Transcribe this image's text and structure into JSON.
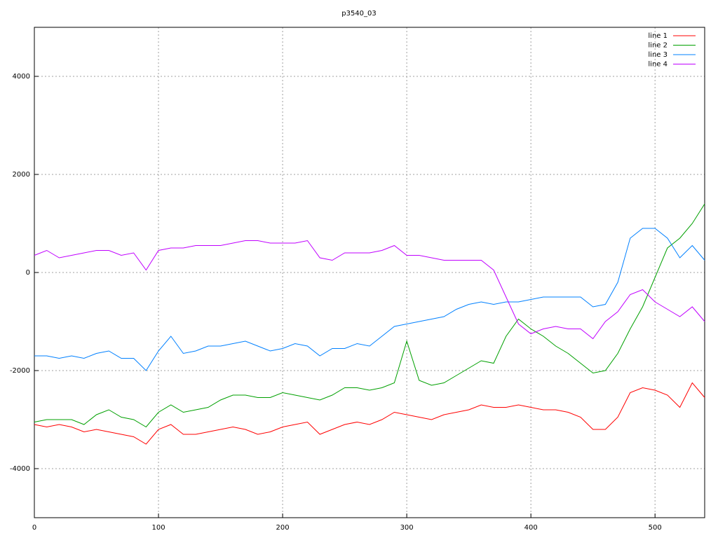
{
  "chart_data": {
    "type": "line",
    "title": "p3540_03",
    "x": [
      0,
      10,
      20,
      30,
      40,
      50,
      60,
      70,
      80,
      90,
      100,
      110,
      120,
      130,
      140,
      150,
      160,
      170,
      180,
      190,
      200,
      210,
      220,
      230,
      240,
      250,
      260,
      270,
      280,
      290,
      300,
      310,
      320,
      330,
      340,
      350,
      360,
      370,
      380,
      390,
      400,
      410,
      420,
      430,
      440,
      450,
      460,
      470,
      480,
      490,
      500,
      510,
      520,
      530,
      540
    ],
    "series": [
      {
        "name": "line 1",
        "color": "#ff0000",
        "values": [
          -3100,
          -3150,
          -3100,
          -3150,
          -3250,
          -3200,
          -3250,
          -3300,
          -3350,
          -3500,
          -3200,
          -3100,
          -3300,
          -3300,
          -3250,
          -3200,
          -3150,
          -3200,
          -3300,
          -3250,
          -3150,
          -3100,
          -3050,
          -3300,
          -3200,
          -3100,
          -3050,
          -3100,
          -3000,
          -2850,
          -2900,
          -2950,
          -3000,
          -2900,
          -2850,
          -2800,
          -2700,
          -2750,
          -2750,
          -2700,
          -2750,
          -2800,
          -2800,
          -2850,
          -2950,
          -3200,
          -3200,
          -2950,
          -2450,
          -2350,
          -2400,
          -2500,
          -2750,
          -2250,
          -2550
        ]
      },
      {
        "name": "line 2",
        "color": "#00a000",
        "values": [
          -3050,
          -3000,
          -3000,
          -3000,
          -3100,
          -2900,
          -2800,
          -2950,
          -3000,
          -3150,
          -2850,
          -2700,
          -2850,
          -2800,
          -2750,
          -2600,
          -2500,
          -2500,
          -2550,
          -2550,
          -2450,
          -2500,
          -2550,
          -2600,
          -2500,
          -2350,
          -2350,
          -2400,
          -2350,
          -2250,
          -1400,
          -2200,
          -2300,
          -2250,
          -2100,
          -1950,
          -1800,
          -1850,
          -1300,
          -950,
          -1150,
          -1300,
          -1500,
          -1650,
          -1850,
          -2050,
          -2000,
          -1650,
          -1150,
          -700,
          -100,
          500,
          700,
          1000,
          1400
        ]
      },
      {
        "name": "line 3",
        "color": "#0080ff",
        "values": [
          -1700,
          -1700,
          -1750,
          -1700,
          -1750,
          -1650,
          -1600,
          -1750,
          -1750,
          -2000,
          -1600,
          -1300,
          -1650,
          -1600,
          -1500,
          -1500,
          -1450,
          -1400,
          -1500,
          -1600,
          -1550,
          -1450,
          -1500,
          -1700,
          -1550,
          -1550,
          -1450,
          -1500,
          -1300,
          -1100,
          -1050,
          -1000,
          -950,
          -900,
          -750,
          -650,
          -600,
          -650,
          -600,
          -600,
          -550,
          -500,
          -500,
          -500,
          -500,
          -700,
          -650,
          -200,
          700,
          900,
          900,
          700,
          300,
          550,
          250
        ]
      },
      {
        "name": "line 4",
        "color": "#c000ff",
        "values": [
          350,
          450,
          300,
          350,
          400,
          450,
          450,
          350,
          400,
          50,
          450,
          500,
          500,
          550,
          550,
          550,
          600,
          650,
          650,
          600,
          600,
          600,
          650,
          300,
          250,
          400,
          400,
          400,
          450,
          550,
          350,
          350,
          300,
          250,
          250,
          250,
          250,
          50,
          -500,
          -1050,
          -1250,
          -1150,
          -1100,
          -1150,
          -1150,
          -1350,
          -1000,
          -800,
          -450,
          -350,
          -600,
          -750,
          -900,
          -700,
          -1000
        ]
      }
    ],
    "xlim": [
      0,
      540
    ],
    "ylim": [
      -5000,
      5000
    ],
    "xticks": [
      0,
      100,
      200,
      300,
      400,
      500
    ],
    "yticks": [
      -4000,
      -2000,
      0,
      2000,
      4000
    ],
    "grid": true,
    "legend": "top-right"
  }
}
